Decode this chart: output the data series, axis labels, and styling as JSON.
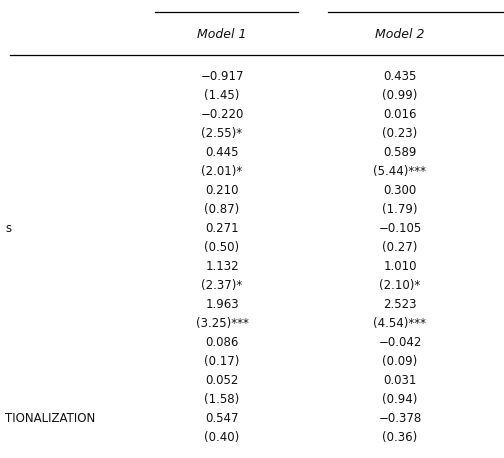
{
  "col_headers": [
    "Model 1",
    "Model 2"
  ],
  "left_labels": [
    "",
    "",
    "",
    "",
    "",
    "",
    "",
    "",
    "",
    "",
    "",
    "",
    "s",
    "",
    "",
    "",
    "",
    "",
    "",
    "",
    "",
    "",
    "",
    "",
    "",
    "",
    "",
    "",
    "",
    "",
    "TIONALIZATION",
    ""
  ],
  "model1_values": [
    "−0.917",
    "(1.45)",
    "−0.220",
    "(2.55)*",
    "0.445",
    "(2.01)*",
    "0.210",
    "(0.87)",
    "0.271",
    "(0.50)",
    "1.132",
    "(2.37)*",
    "1.963",
    "(3.25)***",
    "0.086",
    "(0.17)",
    "0.052",
    "(1.58)",
    "0.547",
    "(0.40)"
  ],
  "model2_values": [
    "0.435",
    "(0.99)",
    "0.016",
    "(0.23)",
    "0.589",
    "(5.44)***",
    "0.300",
    "(1.79)",
    "−0.105",
    "(0.27)",
    "1.010",
    "(2.10)*",
    "2.523",
    "(4.54)***",
    "−0.042",
    "(0.09)",
    "0.031",
    "(0.94)",
    "−0.378",
    "(0.36)"
  ],
  "bg_color": "#ffffff",
  "text_color": "#111111",
  "fontsize": 8.5,
  "header_fontsize": 9.0
}
